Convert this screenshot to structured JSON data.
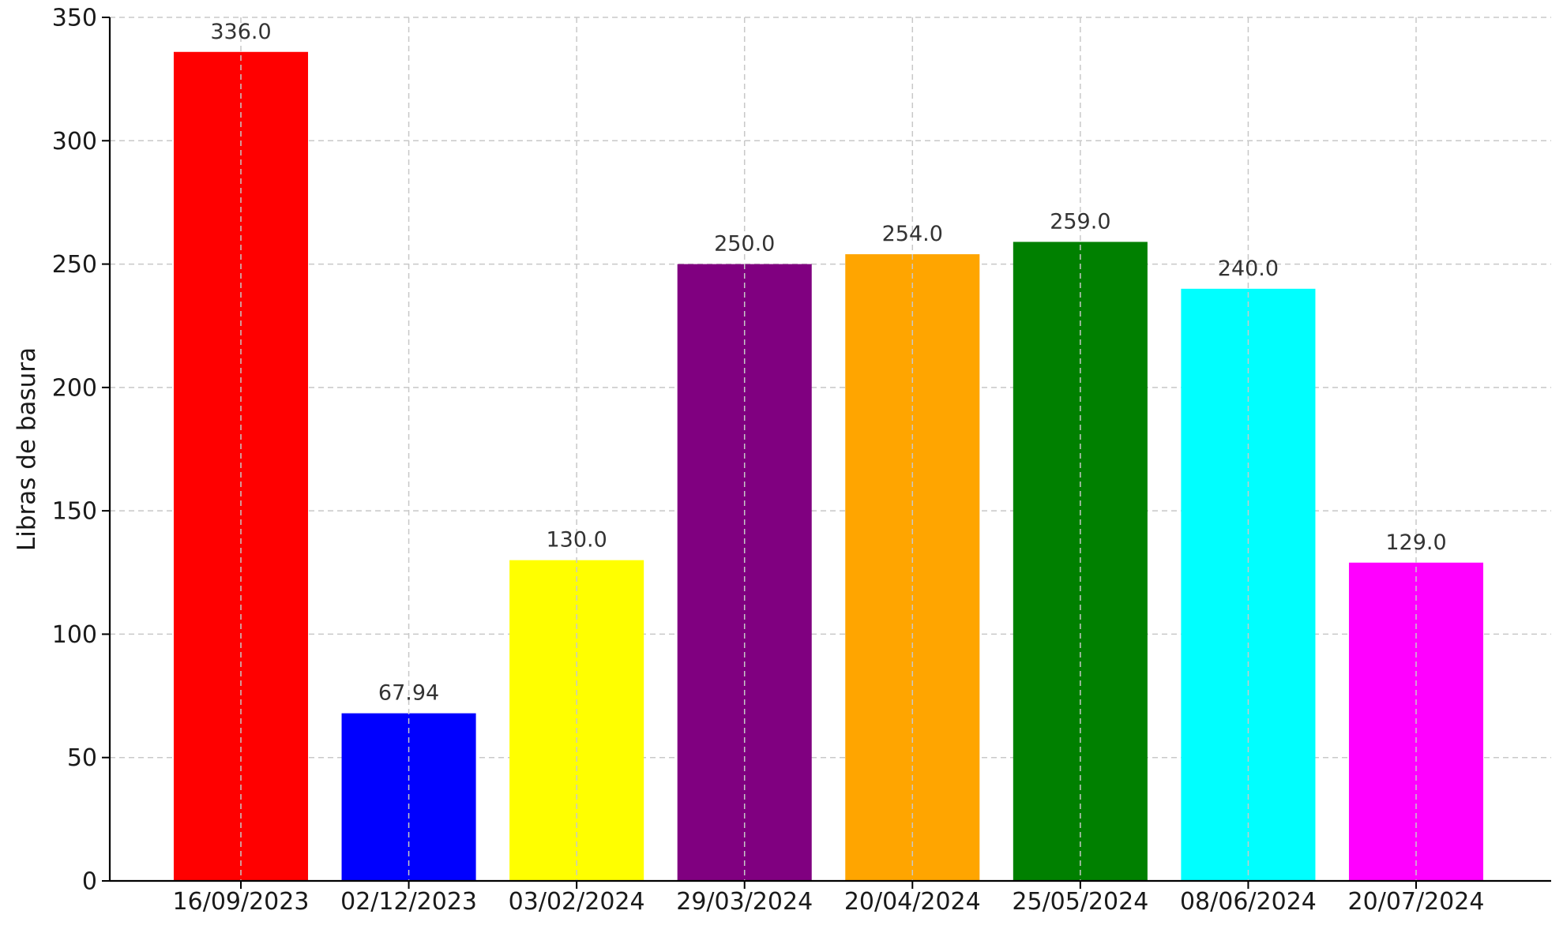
{
  "chart_data": {
    "type": "bar",
    "title": "",
    "xlabel": "",
    "ylabel": "Libras de basura",
    "categories": [
      "16/09/2023",
      "02/12/2023",
      "03/02/2024",
      "29/03/2024",
      "20/04/2024",
      "25/05/2024",
      "08/06/2024",
      "20/07/2024"
    ],
    "values": [
      336.0,
      67.94,
      130.0,
      250.0,
      254.0,
      259.0,
      240.0,
      129.0
    ],
    "value_labels": [
      "336.0",
      "67.94",
      "130.0",
      "250.0",
      "254.0",
      "259.0",
      "240.0",
      "129.0"
    ],
    "colors": [
      "#ff0000",
      "#0000ff",
      "#ffff00",
      "#800080",
      "#ffa500",
      "#008000",
      "#00ffff",
      "#ff00ff"
    ],
    "ylim": [
      0,
      350
    ],
    "yticks": [
      0,
      50,
      100,
      150,
      200,
      250,
      300,
      350
    ],
    "grid": true,
    "grid_style": "dashed",
    "legend": "none"
  }
}
